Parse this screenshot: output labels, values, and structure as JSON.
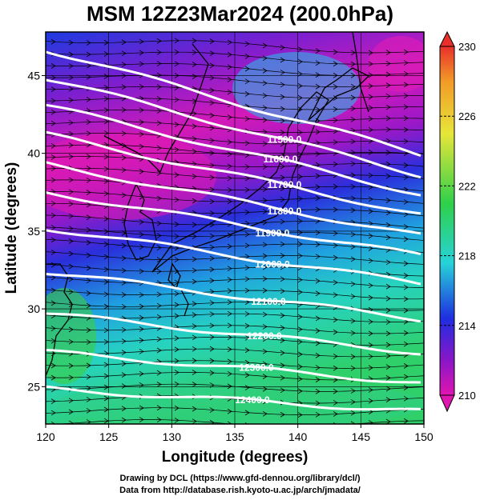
{
  "title": "MSM 12Z23Mar2024 (200.0hPa)",
  "xlabel": "Longitude (degrees)",
  "ylabel": "Latitude  (degrees)",
  "x_ticks": [
    "120",
    "125",
    "130",
    "135",
    "140",
    "145",
    "150"
  ],
  "y_ticks": [
    "25",
    "30",
    "35",
    "40",
    "45"
  ],
  "colorbar": {
    "ticks": [
      "230",
      "226",
      "222",
      "218",
      "214",
      "210"
    ],
    "colors": {
      "top": "#e8302a",
      "orange": "#f29a28",
      "yellow": "#e7e63a",
      "green": "#2fd04a",
      "cyan": "#27d3d8",
      "blue": "#1e2ee0",
      "purple": "#8a16c8",
      "magenta": "#e015b0"
    }
  },
  "contours": [
    {
      "label": "11500.0"
    },
    {
      "label": "11600.0"
    },
    {
      "label": "11700.0"
    },
    {
      "label": "11800.0"
    },
    {
      "label": "11900.0"
    },
    {
      "label": "12000.0"
    },
    {
      "label": "12100.0"
    },
    {
      "label": "12200.0"
    },
    {
      "label": "12300.0"
    },
    {
      "label": "12400.0"
    }
  ],
  "credits": {
    "line1": "Drawing by DCL (https://www.gfd-dennou.org/library/dcl/)",
    "line2": "Data from http://database.rish.kyoto-u.ac.jp/arch/jmadata/"
  }
}
